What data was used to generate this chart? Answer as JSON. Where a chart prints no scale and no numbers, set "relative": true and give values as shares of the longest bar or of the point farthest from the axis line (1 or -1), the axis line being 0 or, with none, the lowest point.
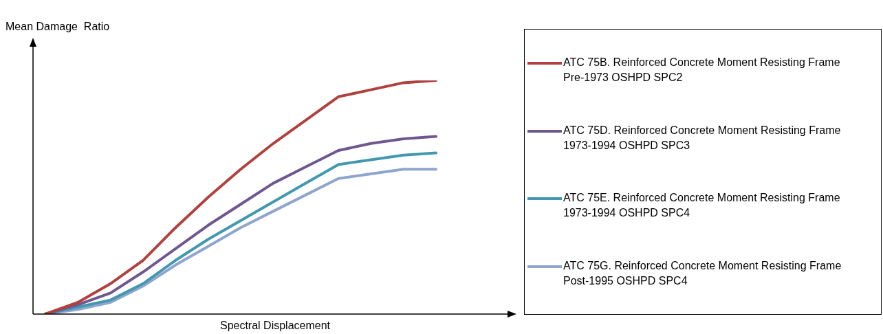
{
  "chart_data": {
    "type": "line",
    "relative": true,
    "xlabel": "Spectral Displacement",
    "ylabel": "Mean Damage  Ratio",
    "legend": "right",
    "categories": [
      null,
      null,
      null,
      null,
      null,
      null,
      null,
      null,
      null,
      null,
      null,
      null,
      null
    ],
    "series": [
      {
        "name": "ATC 75B. Reinforced Concrete Moment Resisting Frame Pre-1973 OSHPD SPC2",
        "color": "#b0413e",
        "values": [
          0,
          0.05,
          0.13,
          0.23,
          0.37,
          0.5,
          0.62,
          0.73,
          0.83,
          0.93,
          0.96,
          0.99,
          1
        ]
      },
      {
        "name": "ATC 75D. Reinforced Concrete Moment Resisting Frame 1973-1994 OSHPD SPC3",
        "color": "#70578f",
        "values": [
          0,
          0.04,
          0.09,
          0.18,
          0.28,
          0.38,
          0.47,
          0.56,
          0.63,
          0.7,
          0.73,
          0.75,
          0.76
        ]
      },
      {
        "name": "ATC 75E. Reinforced Concrete Moment Resisting Frame 1973-1994 OSHPD SPC4",
        "color": "#4198af",
        "values": [
          0,
          0.03,
          0.06,
          0.13,
          0.23,
          0.32,
          0.4,
          0.48,
          0.56,
          0.64,
          0.66,
          0.68,
          0.69
        ]
      },
      {
        "name": "ATC 75G. Reinforced Concrete Moment Resisting Frame Post-1995 OSHPD SPC4",
        "color": "#8ea5cd",
        "values": [
          0,
          0.02,
          0.05,
          0.12,
          0.21,
          0.29,
          0.37,
          0.44,
          0.51,
          0.58,
          0.6,
          0.62,
          0.62
        ]
      }
    ]
  }
}
